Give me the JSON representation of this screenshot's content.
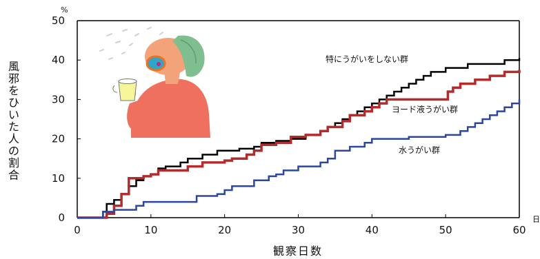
{
  "chart_data": {
    "type": "line",
    "step": true,
    "xlabel": "観察日数",
    "ylabel": "風邪をひいた人の割合",
    "y_unit": "%",
    "x_unit": "日",
    "xlim": [
      0,
      60
    ],
    "ylim": [
      0,
      50
    ],
    "x_ticks": [
      "0",
      "10",
      "20",
      "30",
      "40",
      "50",
      "60"
    ],
    "y_ticks": [
      "0",
      "10",
      "20",
      "30",
      "40",
      "50"
    ],
    "grid": false,
    "series": [
      {
        "name": "特にうがいをしない群",
        "color": "#000000",
        "points": [
          [
            0,
            0
          ],
          [
            3,
            0
          ],
          [
            3.5,
            1.5
          ],
          [
            4,
            3.5
          ],
          [
            5,
            4.5
          ],
          [
            6,
            6
          ],
          [
            7,
            8
          ],
          [
            8,
            9.5
          ],
          [
            9,
            10.5
          ],
          [
            10,
            11
          ],
          [
            11,
            12.5
          ],
          [
            12,
            13
          ],
          [
            14,
            14
          ],
          [
            15,
            15
          ],
          [
            17,
            16
          ],
          [
            19,
            17
          ],
          [
            22,
            17.5
          ],
          [
            24,
            18
          ],
          [
            25,
            19
          ],
          [
            27,
            19.5
          ],
          [
            29,
            20
          ],
          [
            31,
            21
          ],
          [
            33,
            22
          ],
          [
            34,
            23
          ],
          [
            35,
            24
          ],
          [
            36,
            25
          ],
          [
            37,
            26
          ],
          [
            38,
            27
          ],
          [
            39,
            28
          ],
          [
            40,
            29
          ],
          [
            41,
            30
          ],
          [
            42,
            31
          ],
          [
            43,
            32
          ],
          [
            44,
            33
          ],
          [
            45,
            34
          ],
          [
            46,
            35
          ],
          [
            47,
            36
          ],
          [
            48,
            37
          ],
          [
            50,
            38
          ],
          [
            53,
            39
          ],
          [
            58,
            40
          ],
          [
            60,
            40.5
          ]
        ],
        "label_pos": "upper"
      },
      {
        "name": "ヨード液うがい群",
        "color": "#b52a2a",
        "points": [
          [
            0,
            0
          ],
          [
            3,
            0
          ],
          [
            4,
            1
          ],
          [
            5,
            3
          ],
          [
            6,
            6
          ],
          [
            7,
            10
          ],
          [
            9,
            10.5
          ],
          [
            10,
            11
          ],
          [
            11,
            12
          ],
          [
            15,
            13
          ],
          [
            17,
            14
          ],
          [
            20,
            14.5
          ],
          [
            21,
            15
          ],
          [
            23,
            16
          ],
          [
            24,
            17
          ],
          [
            25,
            18.5
          ],
          [
            27,
            19
          ],
          [
            29,
            20.5
          ],
          [
            31,
            21
          ],
          [
            33,
            22
          ],
          [
            34,
            23
          ],
          [
            36,
            24.5
          ],
          [
            37,
            26
          ],
          [
            39,
            27
          ],
          [
            40,
            28
          ],
          [
            41,
            29
          ],
          [
            42,
            30
          ],
          [
            50,
            30
          ],
          [
            50.3,
            32
          ],
          [
            51,
            33
          ],
          [
            52,
            34
          ],
          [
            54,
            35
          ],
          [
            56,
            36
          ],
          [
            58,
            37
          ],
          [
            60,
            37.5
          ]
        ],
        "label_pos": "middle"
      },
      {
        "name": "水うがい群",
        "color": "#2b45a0",
        "points": [
          [
            0,
            0
          ],
          [
            3,
            0
          ],
          [
            3.5,
            1.5
          ],
          [
            5,
            2
          ],
          [
            8,
            3
          ],
          [
            9,
            4
          ],
          [
            11,
            4
          ],
          [
            16,
            4
          ],
          [
            16.2,
            5.5
          ],
          [
            19,
            6
          ],
          [
            20,
            7
          ],
          [
            21,
            8
          ],
          [
            24,
            9.5
          ],
          [
            26,
            10.5
          ],
          [
            27,
            11
          ],
          [
            28,
            12
          ],
          [
            30,
            13
          ],
          [
            33,
            14
          ],
          [
            34,
            15
          ],
          [
            35,
            17
          ],
          [
            37,
            18
          ],
          [
            39,
            19
          ],
          [
            40,
            20
          ],
          [
            45,
            20.5
          ],
          [
            50,
            21
          ],
          [
            52,
            22
          ],
          [
            53,
            23
          ],
          [
            54,
            24
          ],
          [
            55,
            25
          ],
          [
            56,
            26
          ],
          [
            57,
            27
          ],
          [
            58,
            28
          ],
          [
            59,
            29
          ],
          [
            60,
            30
          ]
        ],
        "label_pos": "lower"
      }
    ]
  },
  "illustration": {
    "icon": "person-gargling-cup-icon",
    "skin_color": "#f2a37a",
    "shirt_color": "#f07060",
    "hat_color": "#7fbf8f"
  }
}
